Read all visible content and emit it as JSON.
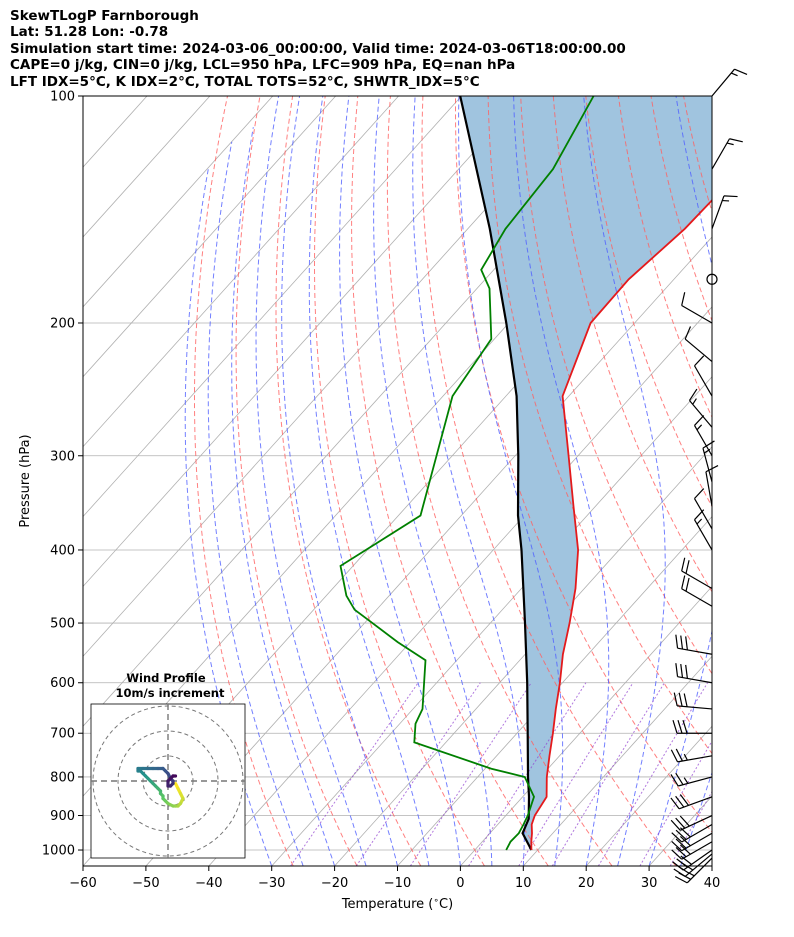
{
  "header": {
    "title": "SkewTLogP Farnborough",
    "latlon": "Lat: 51.28   Lon: -0.78",
    "times": "Simulation start time: 2024-03-06_00:00:00, Valid time: 2024-03-06T18:00:00.00",
    "params": "CAPE=0 j/kg, CIN=0 j/kg, LCL=950 hPa, LFC=909 hPa, EQ=nan hPa",
    "indices": "LFT IDX=5°C, K IDX=2°C, TOTAL TOTS=52°C, SHWTR_IDX=5°C"
  },
  "colors": {
    "temperature": "#e41a1c",
    "dewpoint": "#008000",
    "parcel": "#000000",
    "cape_fill": "#a0c4df",
    "dry_adiabat": "#ff6060",
    "moist_adiabat": "#5060ff",
    "mixing_ratio": "#9040d0",
    "isotherm": "#b0b0b0"
  },
  "chart_data": {
    "type": "skewt-logp",
    "xlabel": "Temperature ($^\\circ$C)",
    "ylabel": "Pressure (hPa)",
    "xlim": [
      -60,
      40
    ],
    "ylim": [
      1050,
      100
    ],
    "xticks": [
      -60,
      -50,
      -40,
      -30,
      -20,
      -10,
      0,
      10,
      20,
      30,
      40
    ],
    "xtick_labels": [
      "−60",
      "−50",
      "−40",
      "−30",
      "−20",
      "−10",
      "0",
      "10",
      "20",
      "30",
      "40"
    ],
    "yticks": [
      1000,
      900,
      800,
      700,
      600,
      500,
      400,
      300,
      200,
      100
    ],
    "ytick_labels": [
      "1000",
      "900",
      "800",
      "700",
      "600",
      "500",
      "400",
      "300",
      "200",
      "100"
    ],
    "grid": true,
    "temperature_profile": {
      "p": [
        1000,
        975,
        950,
        925,
        900,
        850,
        800,
        750,
        700,
        650,
        600,
        550,
        500,
        450,
        400,
        350,
        300,
        250,
        200,
        175,
        150,
        125,
        100
      ],
      "t": [
        9.0,
        7.8,
        6.7,
        5.4,
        4.6,
        3.8,
        1.0,
        -1.6,
        -4.3,
        -7.3,
        -10.4,
        -14.0,
        -17.4,
        -21.4,
        -26.5,
        -33.5,
        -41.5,
        -51.0,
        -57.0,
        -57.2,
        -55.5,
        -55.0,
        -56.0
      ]
    },
    "dewpoint_profile": {
      "p": [
        1000,
        975,
        950,
        925,
        900,
        850,
        800,
        780,
        720,
        680,
        650,
        600,
        560,
        530,
        480,
        460,
        420,
        360,
        300,
        250,
        210,
        180,
        170,
        150,
        125,
        100
      ],
      "td": [
        5.0,
        4.5,
        4.6,
        4.1,
        3.5,
        1.8,
        -2.5,
        -9.0,
        -25.0,
        -27.5,
        -28.5,
        -32.0,
        -35.0,
        -42.0,
        -53.5,
        -56.8,
        -62.0,
        -56.5,
        -62.5,
        -68.5,
        -70.5,
        -78.0,
        -82.0,
        -84.0,
        -85.0,
        -89.0
      ]
    },
    "parcel_profile": {
      "p": [
        1000,
        950,
        909,
        850,
        800,
        700,
        600,
        500,
        400,
        360,
        300,
        250,
        200,
        150,
        100
      ],
      "t": [
        9.0,
        5.2,
        4.1,
        1.0,
        -2.0,
        -8.3,
        -15.6,
        -24.5,
        -35.5,
        -41.0,
        -49.5,
        -58.3,
        -70.4,
        -86.5,
        -110.2
      ]
    },
    "wind_barbs": [
      {
        "p": 1025,
        "speed_kt": 25,
        "dir_deg": 225
      },
      {
        "p": 1012,
        "speed_kt": 30,
        "dir_deg": 230
      },
      {
        "p": 1000,
        "speed_kt": 30,
        "dir_deg": 235
      },
      {
        "p": 975,
        "speed_kt": 30,
        "dir_deg": 240
      },
      {
        "p": 950,
        "speed_kt": 30,
        "dir_deg": 240
      },
      {
        "p": 925,
        "speed_kt": 30,
        "dir_deg": 240
      },
      {
        "p": 900,
        "speed_kt": 30,
        "dir_deg": 245
      },
      {
        "p": 850,
        "speed_kt": 30,
        "dir_deg": 250
      },
      {
        "p": 800,
        "speed_kt": 25,
        "dir_deg": 255
      },
      {
        "p": 750,
        "speed_kt": 25,
        "dir_deg": 260
      },
      {
        "p": 700,
        "speed_kt": 30,
        "dir_deg": 270
      },
      {
        "p": 650,
        "speed_kt": 30,
        "dir_deg": 275
      },
      {
        "p": 600,
        "speed_kt": 30,
        "dir_deg": 280
      },
      {
        "p": 550,
        "speed_kt": 30,
        "dir_deg": 280
      },
      {
        "p": 475,
        "speed_kt": 20,
        "dir_deg": 300
      },
      {
        "p": 450,
        "speed_kt": 20,
        "dir_deg": 300
      },
      {
        "p": 400,
        "speed_kt": 15,
        "dir_deg": 330
      },
      {
        "p": 375,
        "speed_kt": 10,
        "dir_deg": 330
      },
      {
        "p": 350,
        "speed_kt": 10,
        "dir_deg": 350
      },
      {
        "p": 325,
        "speed_kt": 15,
        "dir_deg": 345
      },
      {
        "p": 300,
        "speed_kt": 15,
        "dir_deg": 330
      },
      {
        "p": 275,
        "speed_kt": 15,
        "dir_deg": 320
      },
      {
        "p": 250,
        "speed_kt": 10,
        "dir_deg": 330
      },
      {
        "p": 225,
        "speed_kt": 10,
        "dir_deg": 310
      },
      {
        "p": 200,
        "speed_kt": 10,
        "dir_deg": 300
      },
      {
        "p": 175,
        "speed_kt": 0,
        "dir_deg": 0
      },
      {
        "p": 150,
        "speed_kt": 15,
        "dir_deg": 20
      },
      {
        "p": 125,
        "speed_kt": 15,
        "dir_deg": 30
      },
      {
        "p": 100,
        "speed_kt": 15,
        "dir_deg": 40
      }
    ],
    "hodograph": {
      "title_line1": "Wind Profile",
      "title_line2": "10m/s increment",
      "ring_increment_ms": 10,
      "u": [
        3,
        4,
        5,
        6,
        5,
        4,
        3,
        2,
        0,
        -1,
        -2,
        -2,
        -3,
        -3,
        -4,
        -5,
        -6,
        -7,
        -8,
        -9,
        -10,
        -11,
        -12,
        -12,
        -10,
        -8,
        -6,
        -4,
        -2,
        -1,
        0,
        1,
        2,
        2,
        1,
        0,
        0,
        1,
        2,
        3
      ],
      "v": [
        -1,
        -3,
        -5,
        -7,
        -9,
        -10,
        -10,
        -10,
        -9,
        -8,
        -7,
        -6,
        -5,
        -4,
        -3,
        -2,
        -1,
        0,
        1,
        2,
        3,
        4,
        4,
        5,
        5,
        5,
        5,
        5,
        5,
        4,
        3,
        1,
        0,
        -1,
        -2,
        -2,
        0,
        1,
        2,
        2
      ]
    }
  }
}
